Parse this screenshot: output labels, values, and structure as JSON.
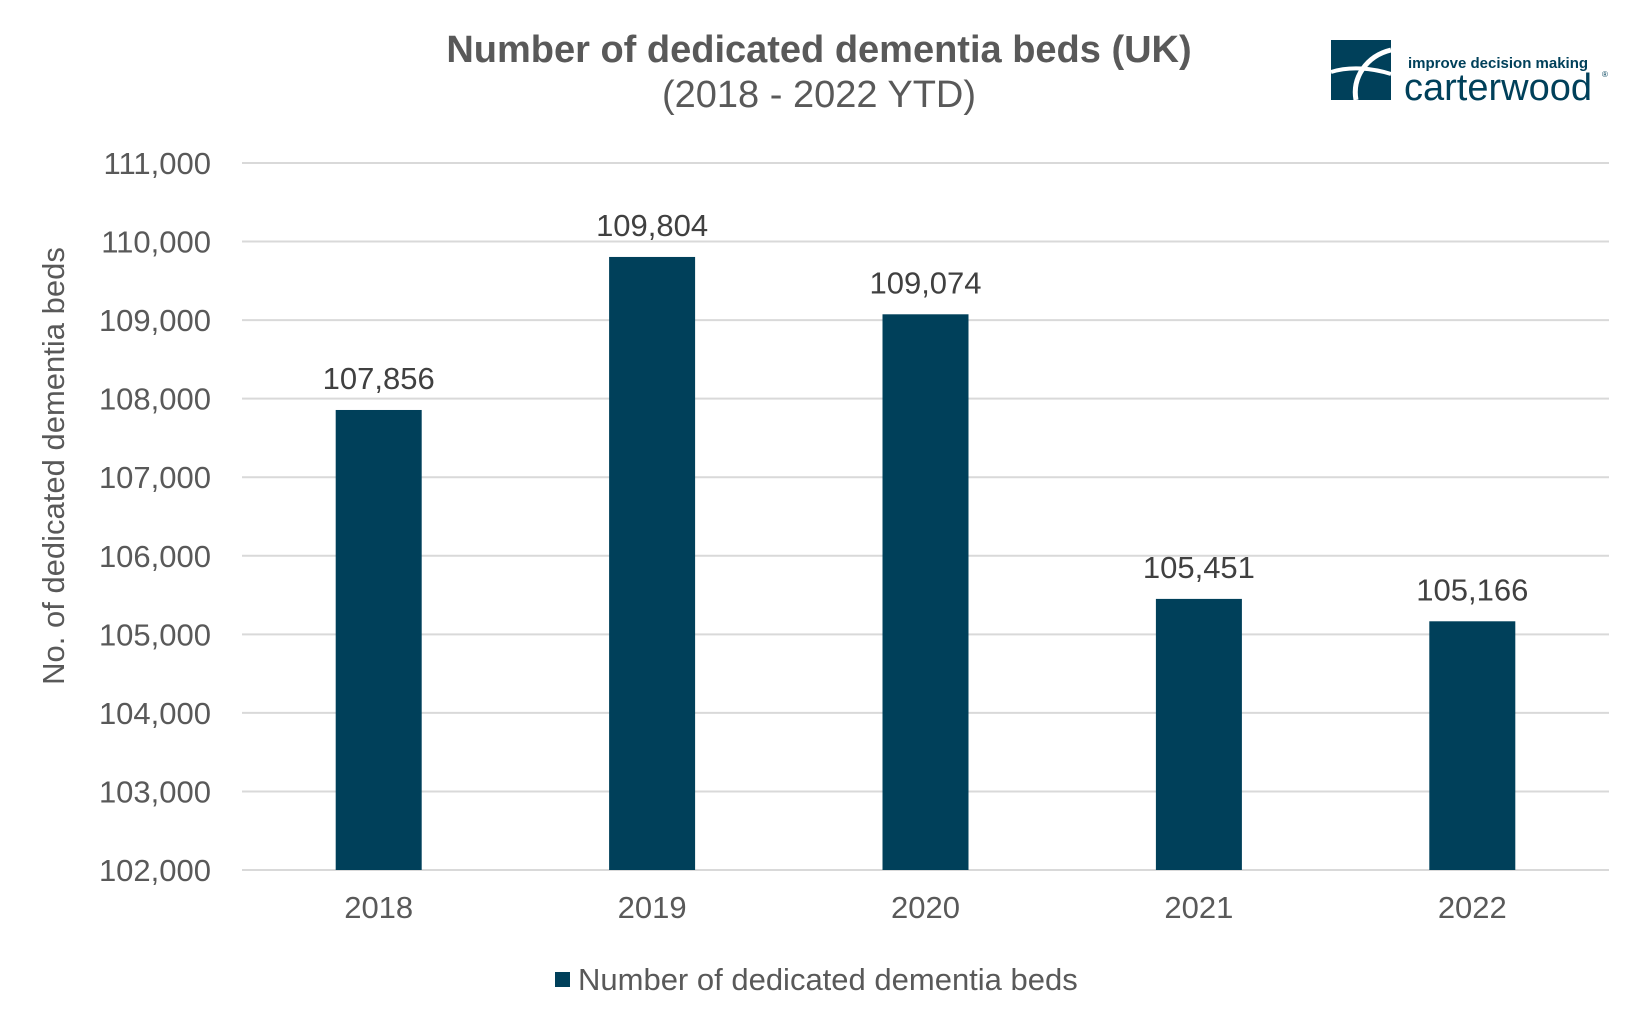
{
  "chart_data": {
    "type": "bar",
    "title": "Number of dedicated dementia beds (UK)",
    "subtitle": "(2018 - 2022 YTD)",
    "ylabel": "No. of dedicated dementia beds",
    "categories": [
      "2018",
      "2019",
      "2020",
      "2021",
      "2022"
    ],
    "series": [
      {
        "name": "Number of dedicated dementia beds",
        "values": [
          107856,
          109804,
          109074,
          105451,
          105166
        ],
        "data_labels": [
          "107,856",
          "109,804",
          "109,074",
          "105,451",
          "105,166"
        ],
        "color": "#00405a"
      }
    ],
    "ylim": [
      102000,
      111000
    ],
    "yticks": [
      102000,
      103000,
      104000,
      105000,
      106000,
      107000,
      108000,
      109000,
      110000,
      111000
    ],
    "ytick_labels": [
      "102,000",
      "103,000",
      "104,000",
      "105,000",
      "106,000",
      "107,000",
      "108,000",
      "109,000",
      "110,000",
      "111,000"
    ],
    "grid": true,
    "legend_position": "bottom",
    "gridline_color": "#d9d9d9"
  },
  "logo": {
    "tagline": "improve decision making",
    "wordmark": "carterwood",
    "registered": "®",
    "color": "#00405a",
    "icon": "carterwood-logo-icon"
  }
}
